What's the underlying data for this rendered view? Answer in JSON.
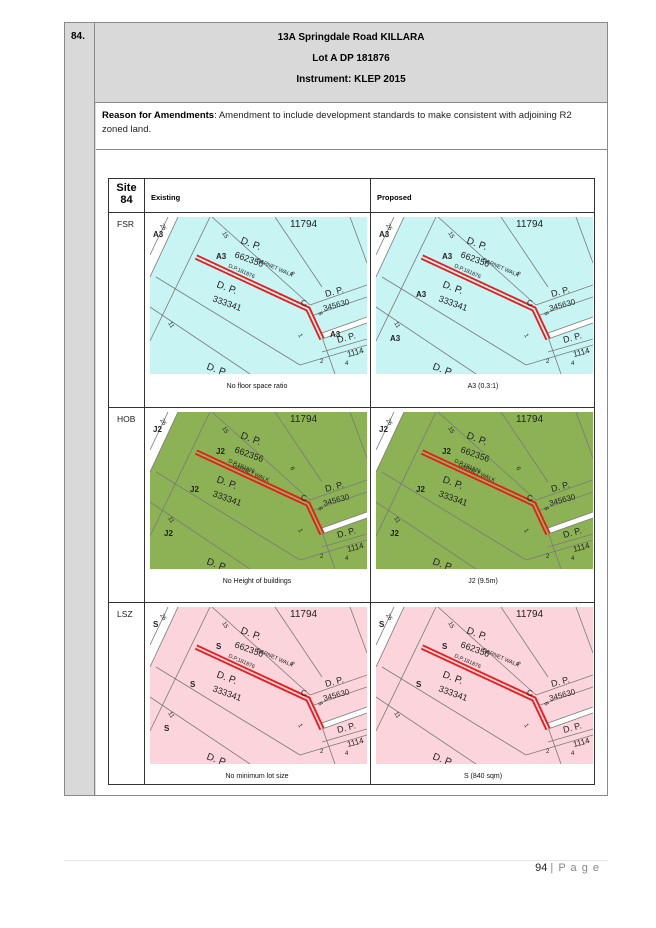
{
  "item": {
    "number": "84.",
    "address": "13A Springdale Road KILLARA",
    "lot": "Lot A DP 181876",
    "instrument": "Instrument: KLEP 2015"
  },
  "reason": {
    "label": "Reason for Amendments",
    "text": ": Amendment to include development standards to make consistent with adjoining R2 zoned land."
  },
  "table": {
    "site_label": "Site",
    "site_number": "84",
    "existing_header": "Existing",
    "proposed_header": "Proposed",
    "rows": [
      {
        "label": "FSR",
        "existing_caption": "No floor space ratio",
        "proposed_caption": "A3 (0.3:1)",
        "existing_fill": "#c8f4f4",
        "proposed_fill": "#c8f4f4",
        "existing_code": "A3",
        "proposed_code": "A3"
      },
      {
        "label": "HOB",
        "existing_caption": "No Height of buildings",
        "proposed_caption": "J2 (9.5m)",
        "existing_fill": "#8db255",
        "proposed_fill": "#8db255",
        "existing_code": "J2",
        "proposed_code": "J2"
      },
      {
        "label": "LSZ",
        "existing_caption": "No minimum lot size",
        "proposed_caption": "S (840 sqm)",
        "existing_fill": "#fcd5dc",
        "proposed_fill": "#fcd5dc",
        "existing_code": "S",
        "proposed_code": "S"
      }
    ]
  },
  "map_labels": {
    "dp1": "D. P.",
    "dp1_num": "662356",
    "dp2": "D. P.",
    "dp2_num": "333341",
    "dp3": "D. P.",
    "dp3_num": "345630",
    "dp4": "D. P.",
    "dp5": "D. P.",
    "walk": "GARNET WALK",
    "dp_small": "D.P.181876",
    "top_num": "11794",
    "edge_num": "1114",
    "lot_15": "15",
    "lot_6": "6",
    "lot_8": "8",
    "lot_1": "1",
    "lot_2": "2",
    "lot_11": "11",
    "lot_13": "13",
    "lot_4": "4",
    "lot_26": "26",
    "letter_c": "C"
  },
  "footer": {
    "page_number": "94",
    "page_label": "| P a g e"
  },
  "colors": {
    "boundary_red": "#e81c1c",
    "line_grey": "#7a7a7a"
  }
}
